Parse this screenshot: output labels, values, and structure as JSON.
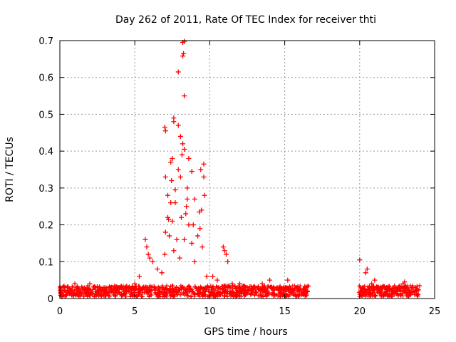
{
  "chart_data": {
    "type": "scatter",
    "title": "Day 262 of 2011, Rate Of TEC Index for receiver thti",
    "xlabel": "GPS time / hours",
    "ylabel": "ROTI / TECUs",
    "xlim": [
      0,
      25
    ],
    "ylim": [
      0,
      0.7
    ],
    "xticks": [
      0,
      5,
      10,
      15,
      20,
      25
    ],
    "yticks": [
      0,
      0.1,
      0.2,
      0.3,
      0.4,
      0.5,
      0.6,
      0.7
    ],
    "xtick_labels": [
      "0",
      "5",
      "10",
      "15",
      "20",
      "25"
    ],
    "ytick_labels": [
      "0",
      "0.1",
      "0.2",
      "0.3",
      "0.4",
      "0.5",
      "0.6",
      "0.7"
    ],
    "grid": true,
    "marker": "+",
    "marker_color": "#ff0000",
    "series": [
      {
        "name": "ROTI",
        "points": [
          [
            8.3,
            0.698
          ],
          [
            8.2,
            0.695
          ],
          [
            8.25,
            0.665
          ],
          [
            8.2,
            0.658
          ],
          [
            7.9,
            0.615
          ],
          [
            8.3,
            0.55
          ],
          [
            7.6,
            0.49
          ],
          [
            7.6,
            0.48
          ],
          [
            7.0,
            0.465
          ],
          [
            7.05,
            0.455
          ],
          [
            7.9,
            0.47
          ],
          [
            8.05,
            0.44
          ],
          [
            8.2,
            0.42
          ],
          [
            8.3,
            0.405
          ],
          [
            7.5,
            0.38
          ],
          [
            7.4,
            0.37
          ],
          [
            8.6,
            0.38
          ],
          [
            9.6,
            0.365
          ],
          [
            9.4,
            0.35
          ],
          [
            8.8,
            0.345
          ],
          [
            7.05,
            0.33
          ],
          [
            7.45,
            0.32
          ],
          [
            8.05,
            0.33
          ],
          [
            9.6,
            0.33
          ],
          [
            9.65,
            0.28
          ],
          [
            7.7,
            0.295
          ],
          [
            8.5,
            0.3
          ],
          [
            9.0,
            0.27
          ],
          [
            7.4,
            0.26
          ],
          [
            8.45,
            0.25
          ],
          [
            9.3,
            0.235
          ],
          [
            9.45,
            0.24
          ],
          [
            7.5,
            0.21
          ],
          [
            7.2,
            0.22
          ],
          [
            7.25,
            0.215
          ],
          [
            8.1,
            0.22
          ],
          [
            8.6,
            0.2
          ],
          [
            9.35,
            0.19
          ],
          [
            7.05,
            0.18
          ],
          [
            7.3,
            0.17
          ],
          [
            7.8,
            0.16
          ],
          [
            8.3,
            0.16
          ],
          [
            8.8,
            0.15
          ],
          [
            9.5,
            0.14
          ],
          [
            5.7,
            0.16
          ],
          [
            5.8,
            0.14
          ],
          [
            5.9,
            0.12
          ],
          [
            6.0,
            0.11
          ],
          [
            6.2,
            0.1
          ],
          [
            10.9,
            0.14
          ],
          [
            11.0,
            0.13
          ],
          [
            11.1,
            0.12
          ],
          [
            11.2,
            0.1
          ],
          [
            20.0,
            0.105
          ],
          [
            20.5,
            0.08
          ],
          [
            20.4,
            0.07
          ],
          [
            21.0,
            0.05
          ],
          [
            14.0,
            0.05
          ],
          [
            15.2,
            0.05
          ],
          [
            22.9,
            0.04
          ],
          [
            7.0,
            0.12
          ],
          [
            7.6,
            0.13
          ],
          [
            8.0,
            0.11
          ],
          [
            9.0,
            0.1
          ],
          [
            6.5,
            0.08
          ],
          [
            6.8,
            0.07
          ],
          [
            5.3,
            0.06
          ],
          [
            5.0,
            0.04
          ],
          [
            4.0,
            0.03
          ],
          [
            3.0,
            0.03
          ],
          [
            2.0,
            0.04
          ],
          [
            1.0,
            0.04
          ],
          [
            0.5,
            0.02
          ],
          [
            12.0,
            0.04
          ],
          [
            13.0,
            0.03
          ],
          [
            16.0,
            0.025
          ],
          [
            16.5,
            0.02
          ],
          [
            21.5,
            0.03
          ],
          [
            22.5,
            0.02
          ],
          [
            23.5,
            0.03
          ],
          [
            23.8,
            0.02
          ],
          [
            0.2,
            0.01
          ],
          [
            10.2,
            0.06
          ],
          [
            10.5,
            0.05
          ],
          [
            11.5,
            0.04
          ],
          [
            12.5,
            0.03
          ],
          [
            13.5,
            0.04
          ],
          [
            14.5,
            0.03
          ],
          [
            15.5,
            0.02
          ],
          [
            20.2,
            0.03
          ],
          [
            20.8,
            0.04
          ],
          [
            21.8,
            0.02
          ],
          [
            23.0,
            0.045
          ],
          [
            7.2,
            0.28
          ],
          [
            7.7,
            0.26
          ],
          [
            8.4,
            0.23
          ],
          [
            8.9,
            0.2
          ],
          [
            9.2,
            0.17
          ],
          [
            7.9,
            0.35
          ],
          [
            8.15,
            0.39
          ],
          [
            8.5,
            0.27
          ],
          [
            9.8,
            0.06
          ]
        ]
      }
    ]
  }
}
